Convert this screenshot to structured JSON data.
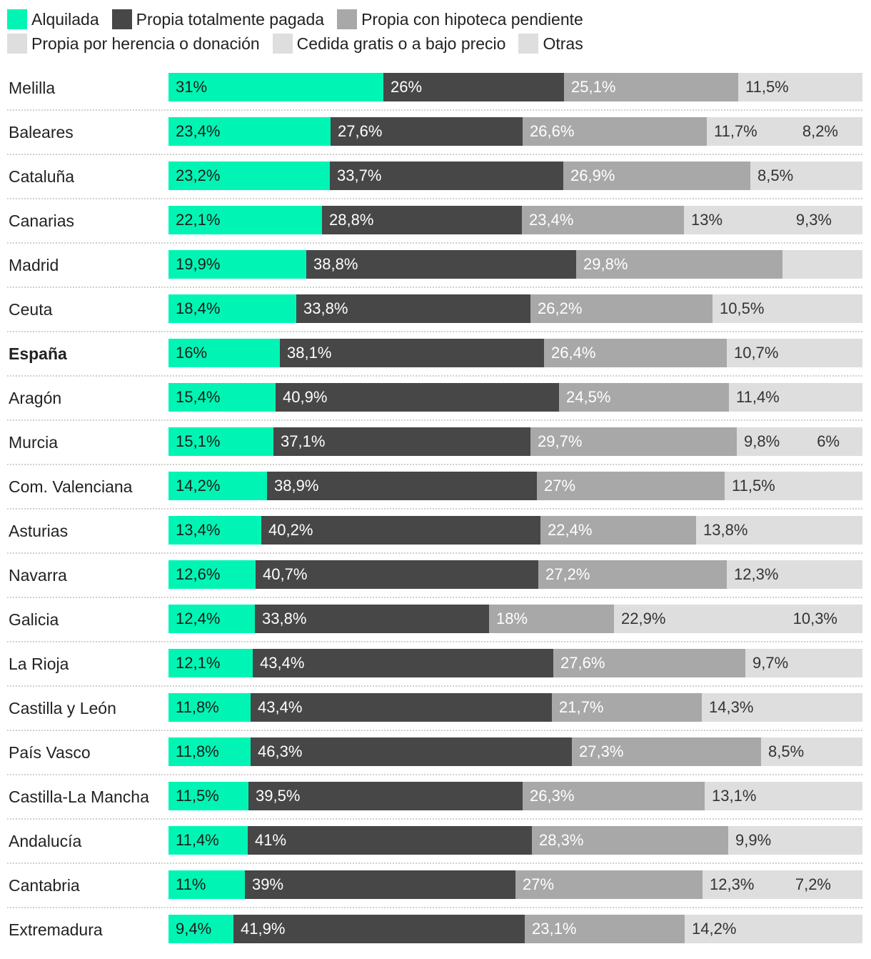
{
  "chart_data": {
    "type": "bar",
    "orientation": "horizontal",
    "stacked": true,
    "xlim": [
      0,
      100
    ],
    "series": [
      {
        "name": "Alquilada",
        "color": "#00f5b4",
        "label_color": "#1a1a1a"
      },
      {
        "name": "Propia totalmente pagada",
        "color": "#474747",
        "label_color": "#ffffff"
      },
      {
        "name": "Propia con hipoteca pendiente",
        "color": "#a8a8a8",
        "label_color": "#ffffff"
      },
      {
        "name": "Propia por herencia o donación",
        "color": "#dedede",
        "label_color": "#333333"
      },
      {
        "name": "Cedida gratis o a bajo precio",
        "color": "#dedede",
        "label_color": "#333333"
      },
      {
        "name": "Otras",
        "color": "#dedede",
        "label_color": "#333333"
      }
    ],
    "rows": [
      {
        "name": "Melilla",
        "values": [
          31,
          26,
          25.1,
          11.5
        ],
        "labels": [
          "31%",
          "26%",
          "25,1%",
          "11,5%"
        ]
      },
      {
        "name": "Baleares",
        "values": [
          23.4,
          27.6,
          26.6,
          11.7,
          8.2
        ],
        "labels": [
          "23,4%",
          "27,6%",
          "26,6%",
          "11,7%",
          "8,2%"
        ]
      },
      {
        "name": "Cataluña",
        "values": [
          23.2,
          33.7,
          26.9,
          8.5
        ],
        "labels": [
          "23,2%",
          "33,7%",
          "26,9%",
          "8,5%"
        ]
      },
      {
        "name": "Canarias",
        "values": [
          22.1,
          28.8,
          23.4,
          13,
          9.3
        ],
        "labels": [
          "22,1%",
          "28,8%",
          "23,4%",
          "13%",
          "9,3%"
        ]
      },
      {
        "name": "Madrid",
        "values": [
          19.9,
          38.8,
          29.8,
          5
        ],
        "labels": [
          "19,9%",
          "38,8%",
          "29,8%",
          ""
        ]
      },
      {
        "name": "Ceuta",
        "values": [
          18.4,
          33.8,
          26.2,
          10.5
        ],
        "labels": [
          "18,4%",
          "33,8%",
          "26,2%",
          "10,5%"
        ]
      },
      {
        "name": "España",
        "bold": true,
        "values": [
          16,
          38.1,
          26.4,
          10.7
        ],
        "labels": [
          "16%",
          "38,1%",
          "26,4%",
          "10,7%"
        ]
      },
      {
        "name": "Aragón",
        "values": [
          15.4,
          40.9,
          24.5,
          11.4
        ],
        "labels": [
          "15,4%",
          "40,9%",
          "24,5%",
          "11,4%"
        ]
      },
      {
        "name": "Murcia",
        "values": [
          15.1,
          37.1,
          29.7,
          9.8,
          6
        ],
        "labels": [
          "15,1%",
          "37,1%",
          "29,7%",
          "9,8%",
          "6%"
        ]
      },
      {
        "name": "Com. Valenciana",
        "values": [
          14.2,
          38.9,
          27,
          11.5
        ],
        "labels": [
          "14,2%",
          "38,9%",
          "27%",
          "11,5%"
        ]
      },
      {
        "name": "Asturias",
        "values": [
          13.4,
          40.2,
          22.4,
          13.8
        ],
        "labels": [
          "13,4%",
          "40,2%",
          "22,4%",
          "13,8%"
        ]
      },
      {
        "name": "Navarra",
        "values": [
          12.6,
          40.7,
          27.2,
          12.3
        ],
        "labels": [
          "12,6%",
          "40,7%",
          "27,2%",
          "12,3%"
        ]
      },
      {
        "name": "Galicia",
        "values": [
          12.4,
          33.8,
          18,
          22.9,
          10.3
        ],
        "labels": [
          "12,4%",
          "33,8%",
          "18%",
          "22,9%",
          "10,3%"
        ]
      },
      {
        "name": "La Rioja",
        "values": [
          12.1,
          43.4,
          27.6,
          9.7
        ],
        "labels": [
          "12,1%",
          "43,4%",
          "27,6%",
          "9,7%"
        ]
      },
      {
        "name": "Castilla y León",
        "values": [
          11.8,
          43.4,
          21.7,
          14.3
        ],
        "labels": [
          "11,8%",
          "43,4%",
          "21,7%",
          "14,3%"
        ]
      },
      {
        "name": "País Vasco",
        "values": [
          11.8,
          46.3,
          27.3,
          8.5
        ],
        "labels": [
          "11,8%",
          "46,3%",
          "27,3%",
          "8,5%"
        ]
      },
      {
        "name": "Castilla-La Mancha",
        "values": [
          11.5,
          39.5,
          26.3,
          13.1
        ],
        "labels": [
          "11,5%",
          "39,5%",
          "26,3%",
          "13,1%"
        ]
      },
      {
        "name": "Andalucía",
        "values": [
          11.4,
          41,
          28.3,
          9.9
        ],
        "labels": [
          "11,4%",
          "41%",
          "28,3%",
          "9,9%"
        ]
      },
      {
        "name": "Cantabria",
        "values": [
          11,
          39,
          27,
          12.3,
          7.2
        ],
        "labels": [
          "11%",
          "39%",
          "27%",
          "12,3%",
          "7,2%"
        ]
      },
      {
        "name": "Extremadura",
        "values": [
          9.4,
          41.9,
          23.1,
          14.2
        ],
        "labels": [
          "9,4%",
          "41,9%",
          "23,1%",
          "14,2%"
        ]
      }
    ]
  }
}
